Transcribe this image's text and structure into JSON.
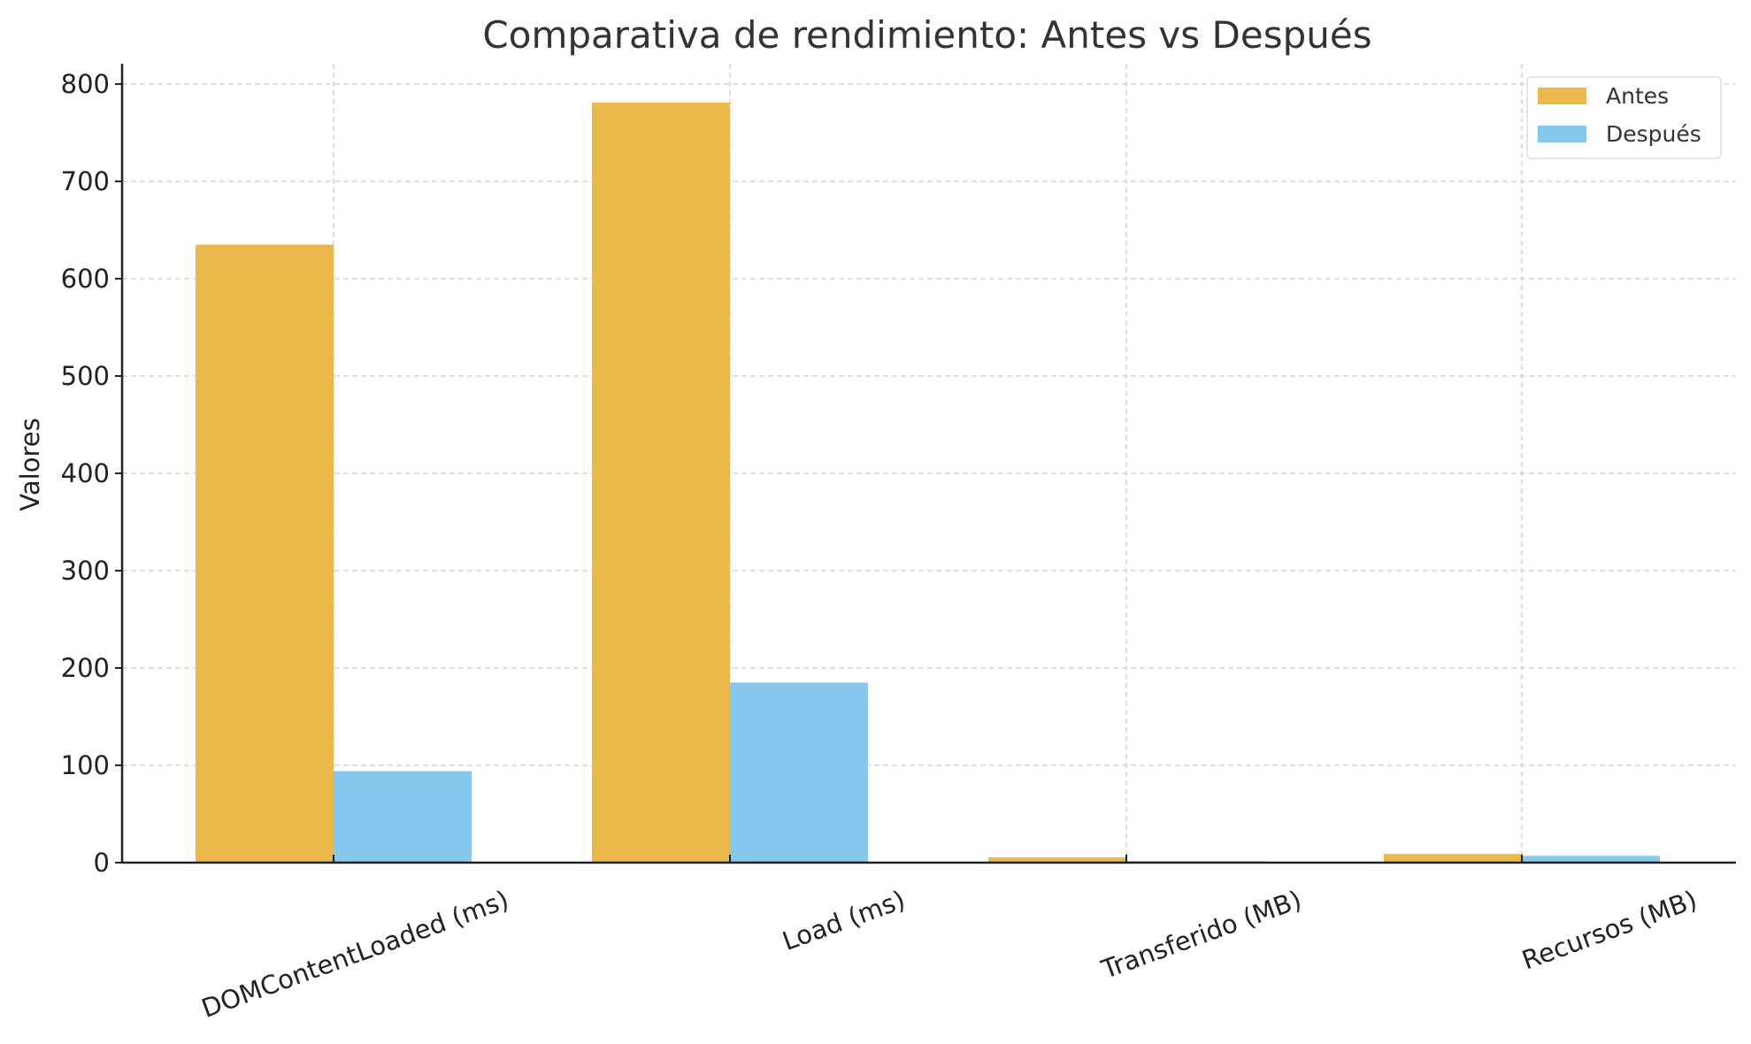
{
  "chart_data": {
    "type": "bar",
    "title": "Comparativa de rendimiento: Antes vs Después",
    "xlabel": "",
    "ylabel": "Valores",
    "ylim": [
      0,
      820
    ],
    "yticks": [
      0,
      100,
      200,
      300,
      400,
      500,
      600,
      700,
      800
    ],
    "grid": true,
    "legend_position": "top-right",
    "categories": [
      "DOMContentLoaded (ms)",
      "Load (ms)",
      "Transferido (MB)",
      "Recursos (MB)"
    ],
    "series": [
      {
        "name": "Antes",
        "color": "#ebb94b",
        "values": [
          635,
          781,
          5.5,
          9
        ]
      },
      {
        "name": "Después",
        "color": "#89c8ee",
        "values": [
          94,
          185,
          1.5,
          7
        ]
      }
    ]
  }
}
